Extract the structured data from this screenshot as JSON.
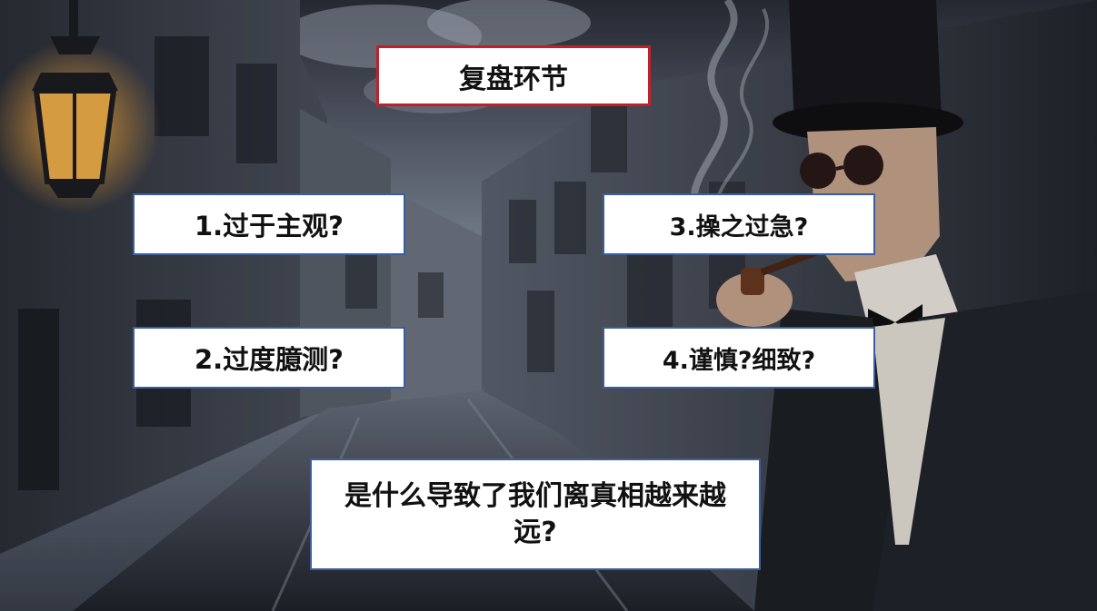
{
  "slide": {
    "title": "复盘环节",
    "items": [
      {
        "label": "1.过于主观?"
      },
      {
        "label": "2.过度臆测?"
      },
      {
        "label": "3.操之过急?"
      },
      {
        "label": "4.谨慎?细致?"
      }
    ],
    "question": "是什么导致了我们离真相越来越远?"
  },
  "colors": {
    "title_border": "#c0202a",
    "box_border": "#3a5ea0",
    "box_fill": "#ffffff"
  },
  "icons": [
    "street-lamp-icon",
    "detective-figure-icon"
  ]
}
